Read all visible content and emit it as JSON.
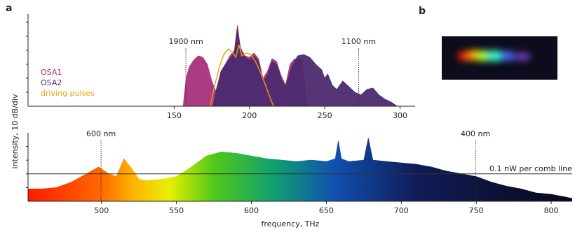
{
  "panel_labels": [
    "a",
    "b"
  ],
  "chart_data": [
    {
      "type": "area",
      "xlim": [
        53,
        310
      ],
      "xticks": [
        150,
        200,
        250,
        300
      ],
      "ylim": [
        0,
        66
      ],
      "yticks": [
        10,
        20,
        30,
        40,
        50,
        60
      ],
      "legend": "left",
      "series": [
        {
          "name": "OSA1",
          "color": "#a8327a",
          "style": "area",
          "x": [
            156,
            158,
            160,
            163,
            166,
            169,
            172,
            175,
            178,
            181,
            184,
            187,
            190,
            192,
            194,
            197,
            200,
            203,
            206,
            209,
            212,
            215,
            218,
            221,
            224,
            227,
            230,
            235,
            238
          ],
          "values": [
            0,
            20,
            28,
            33,
            36,
            35,
            30,
            18,
            10,
            25,
            30,
            36,
            40,
            58,
            42,
            36,
            35,
            38,
            34,
            20,
            25,
            34,
            32,
            22,
            15,
            30,
            34,
            33,
            0
          ]
        },
        {
          "name": "OSA2",
          "color": "#4b2a6e",
          "style": "area",
          "x": [
            176,
            178,
            181,
            184,
            187,
            190,
            192,
            194,
            197,
            200,
            203,
            206,
            209,
            212,
            215,
            218,
            221,
            224,
            228,
            232,
            236,
            240,
            244,
            248,
            250,
            252,
            255,
            258,
            262,
            266,
            270,
            274,
            278,
            282,
            286,
            290,
            294,
            298
          ],
          "values": [
            0,
            12,
            24,
            30,
            34,
            38,
            55,
            40,
            35,
            33,
            36,
            32,
            18,
            22,
            32,
            30,
            20,
            14,
            28,
            36,
            37,
            35,
            30,
            26,
            20,
            23,
            15,
            12,
            18,
            14,
            10,
            8,
            12,
            13,
            8,
            5,
            3,
            0
          ]
        },
        {
          "name": "driving pulses",
          "color": "#eea000",
          "style": "line",
          "x": [
            174,
            177,
            180,
            183,
            186,
            189,
            191,
            193,
            195,
            198,
            201,
            204,
            207,
            210,
            213,
            216
          ],
          "values": [
            0,
            15,
            28,
            37,
            41,
            38,
            35,
            44,
            36,
            38,
            37,
            32,
            25,
            17,
            8,
            0
          ]
        }
      ],
      "annotations": [
        {
          "text": "1900 nm",
          "x": 157.8
        },
        {
          "text": "1100 nm",
          "x": 272.5
        }
      ]
    },
    {
      "type": "area",
      "xlabel": "frequency, THz",
      "ylabel": "intensity, 10 dB/div",
      "xlim": [
        451,
        814
      ],
      "xticks": [
        500,
        550,
        600,
        650,
        700,
        750,
        800
      ],
      "ylim": [
        0,
        50
      ],
      "yticks": [
        10,
        20,
        30,
        40
      ],
      "series": [
        {
          "style": "gradient-area",
          "gradient": [
            {
              "x": 451,
              "color": "#ff1a00"
            },
            {
              "x": 500,
              "color": "#ff6a00"
            },
            {
              "x": 520,
              "color": "#ffb000"
            },
            {
              "x": 545,
              "color": "#e8f000"
            },
            {
              "x": 575,
              "color": "#50c818"
            },
            {
              "x": 615,
              "color": "#10a070"
            },
            {
              "x": 655,
              "color": "#1050b0"
            },
            {
              "x": 710,
              "color": "#101c58"
            },
            {
              "x": 814,
              "color": "#080818"
            }
          ],
          "x": [
            451,
            460,
            470,
            480,
            490,
            498,
            505,
            510,
            515,
            520,
            525,
            530,
            540,
            550,
            560,
            570,
            580,
            590,
            600,
            610,
            620,
            630,
            640,
            650,
            656,
            658,
            660,
            665,
            675,
            678,
            681,
            690,
            700,
            710,
            720,
            730,
            740,
            750,
            760,
            770,
            780,
            790,
            800,
            810,
            814
          ],
          "values": [
            9,
            9,
            10,
            14,
            20,
            25,
            20,
            18,
            31,
            24,
            16,
            15,
            16,
            18,
            25,
            33,
            36,
            35,
            33,
            31,
            30,
            29,
            30,
            29,
            31,
            44,
            31,
            29,
            30,
            46,
            30,
            29,
            28,
            27,
            25,
            22,
            20,
            18,
            14,
            11,
            9,
            6,
            5,
            3,
            2
          ]
        }
      ],
      "annotations": [
        {
          "text": "600 nm",
          "x": 499.7
        },
        {
          "text": "400 nm",
          "x": 749.5
        }
      ],
      "reference_line": {
        "label": "0.1 nW per comb line",
        "value": 20
      }
    }
  ]
}
